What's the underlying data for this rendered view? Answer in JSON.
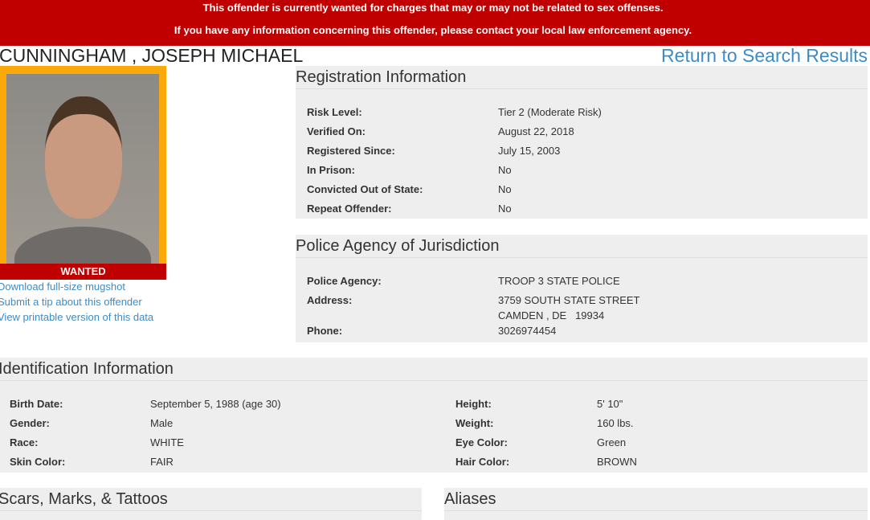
{
  "banner": {
    "line1": "This offender is currently wanted for charges that may or may not be related to sex offenses.",
    "line2": "If you have any information concerning this offender, please contact your local law enforcement agency."
  },
  "offender_name": "CUNNINGHAM , JOSEPH MICHAEL",
  "return_link": "Return to Search Results",
  "photo": {
    "badge": "WANTED"
  },
  "links": [
    "Download full-size mugshot",
    "Submit a tip about this offender",
    "View printable version of this data"
  ],
  "registration": {
    "title": "Registration Information",
    "rows": [
      {
        "label": "Risk Level:",
        "value": "Tier 2 (Moderate Risk)"
      },
      {
        "label": "Verified On:",
        "value": "August 22, 2018"
      },
      {
        "label": "Registered Since:",
        "value": "July 15, 2003"
      },
      {
        "label": "In Prison:",
        "value": "No"
      },
      {
        "label": "Convicted Out of State:",
        "value": "No"
      },
      {
        "label": "Repeat Offender:",
        "value": "No"
      }
    ]
  },
  "police": {
    "title": "Police Agency of Jurisdiction",
    "agency_label": "Police Agency:",
    "agency": "TROOP 3 STATE POLICE",
    "address_label": "Address:",
    "address1": "3759 SOUTH STATE STREET",
    "address2": "CAMDEN , DE   19934",
    "phone_label": "Phone:",
    "phone": "3026974454"
  },
  "identification": {
    "title": "Identification Information",
    "left": [
      {
        "label": "Birth Date:",
        "value": "September 5, 1988 (age 30)"
      },
      {
        "label": "Gender:",
        "value": "Male"
      },
      {
        "label": "Race:",
        "value": "WHITE"
      },
      {
        "label": "Skin Color:",
        "value": "FAIR"
      }
    ],
    "right": [
      {
        "label": "Height:",
        "value": "5' 10\""
      },
      {
        "label": "Weight:",
        "value": "160 lbs."
      },
      {
        "label": "Eye Color:",
        "value": "Green"
      },
      {
        "label": "Hair Color:",
        "value": "BROWN"
      }
    ]
  },
  "scars": {
    "title": "Scars, Marks, & Tattoos"
  },
  "aliases": {
    "title": "Aliases"
  },
  "colors": {
    "banner": "#c00000",
    "frame": "#fba80a",
    "link": "#3d8cc6",
    "panel": "#eeeeee"
  }
}
